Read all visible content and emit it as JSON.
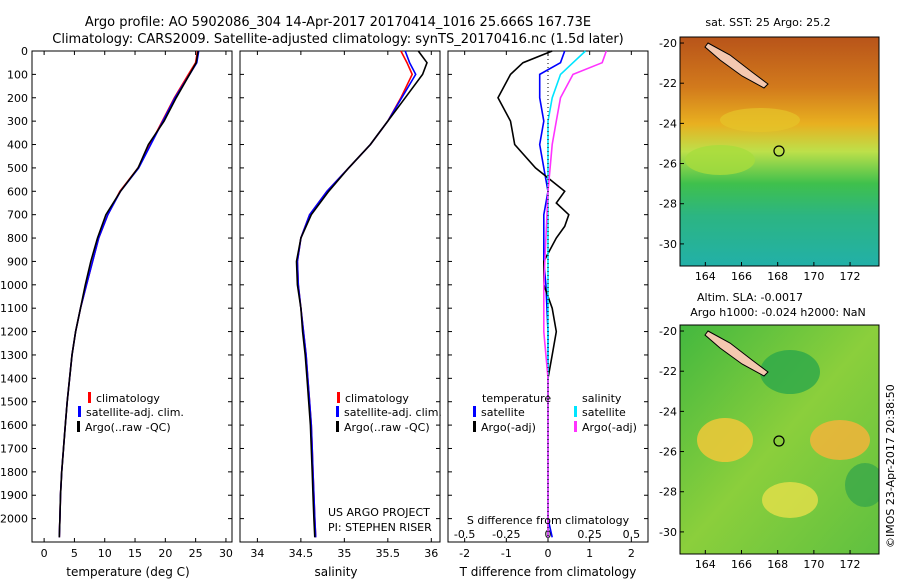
{
  "header": {
    "line1": "Argo profile: AO 5902086_304 14-Apr-2017 20170414_1016 25.666S 167.73E",
    "line2": "Climatology: CARS2009. Satellite-adjusted climatology: synTS_20170416.nc (1.5d later)"
  },
  "colors": {
    "climatology": "#ff0000",
    "satellite": "#0000ff",
    "argo": "#000000",
    "s_satellite": "#00e5ff",
    "s_argo": "#ff33ff"
  },
  "chart_data": [
    {
      "type": "line",
      "name": "temperature",
      "xlabel": "temperature (deg C)",
      "ylabel": "",
      "xlim": [
        -2,
        31
      ],
      "ylim": [
        2100,
        0
      ],
      "xticks": [
        0,
        5,
        10,
        15,
        20,
        25,
        30
      ],
      "yticks": [
        0,
        100,
        200,
        300,
        400,
        500,
        600,
        700,
        800,
        900,
        1000,
        1100,
        1200,
        1300,
        1400,
        1500,
        1600,
        1700,
        1800,
        1900,
        2000
      ],
      "legend": [
        "climatology",
        "satellite-adj. clim.",
        "Argo(..raw -QC)"
      ],
      "series": [
        {
          "name": "climatology",
          "color": "#ff0000",
          "points": [
            [
              25.3,
              0
            ],
            [
              25.0,
              50
            ],
            [
              23.8,
              100
            ],
            [
              21.5,
              200
            ],
            [
              19.5,
              300
            ],
            [
              17.5,
              400
            ],
            [
              15.5,
              500
            ],
            [
              12.5,
              600
            ],
            [
              10.5,
              700
            ],
            [
              9.0,
              800
            ],
            [
              8.0,
              900
            ],
            [
              7.0,
              1000
            ],
            [
              6.0,
              1100
            ],
            [
              5.2,
              1200
            ],
            [
              4.6,
              1300
            ],
            [
              4.2,
              1400
            ],
            [
              3.8,
              1500
            ],
            [
              3.5,
              1600
            ],
            [
              3.2,
              1700
            ],
            [
              2.9,
              1800
            ],
            [
              2.7,
              1900
            ],
            [
              2.6,
              2000
            ],
            [
              2.5,
              2080
            ]
          ]
        },
        {
          "name": "satellite-adj. clim.",
          "color": "#0000ff",
          "points": [
            [
              25.5,
              0
            ],
            [
              25.2,
              50
            ],
            [
              24.0,
              100
            ],
            [
              21.6,
              200
            ],
            [
              19.6,
              300
            ],
            [
              17.6,
              400
            ],
            [
              15.6,
              500
            ],
            [
              12.6,
              600
            ],
            [
              10.5,
              700
            ],
            [
              9.0,
              800
            ],
            [
              8.0,
              900
            ],
            [
              7.0,
              1000
            ],
            [
              6.0,
              1100
            ],
            [
              5.2,
              1200
            ],
            [
              4.6,
              1300
            ],
            [
              4.2,
              1400
            ],
            [
              3.8,
              1500
            ],
            [
              3.5,
              1600
            ],
            [
              3.2,
              1700
            ],
            [
              2.9,
              1800
            ],
            [
              2.7,
              1900
            ],
            [
              2.6,
              2000
            ],
            [
              2.5,
              2080
            ]
          ]
        },
        {
          "name": "Argo(..raw -QC)",
          "color": "#000000",
          "points": [
            [
              25.4,
              0
            ],
            [
              25.1,
              50
            ],
            [
              24.0,
              100
            ],
            [
              21.8,
              200
            ],
            [
              19.8,
              300
            ],
            [
              17.2,
              400
            ],
            [
              15.5,
              500
            ],
            [
              12.6,
              600
            ],
            [
              10.2,
              700
            ],
            [
              8.8,
              800
            ],
            [
              7.7,
              900
            ],
            [
              6.8,
              1000
            ],
            [
              6.0,
              1100
            ],
            [
              5.2,
              1200
            ],
            [
              4.6,
              1300
            ],
            [
              4.2,
              1400
            ],
            [
              3.8,
              1500
            ],
            [
              3.5,
              1600
            ],
            [
              3.2,
              1700
            ],
            [
              2.9,
              1800
            ],
            [
              2.7,
              1900
            ],
            [
              2.6,
              2000
            ],
            [
              2.5,
              2080
            ]
          ]
        }
      ]
    },
    {
      "type": "line",
      "name": "salinity",
      "xlabel": "salinity",
      "ylabel": "",
      "xlim": [
        33.8,
        36.1
      ],
      "ylim": [
        2100,
        0
      ],
      "xticks": [
        34,
        34.5,
        35,
        35.5,
        36
      ],
      "legend": [
        "climatology",
        "satellite-adj. clim.",
        "Argo(..raw -QC)"
      ],
      "annotation": [
        "US ARGO PROJECT",
        "PI: STEPHEN RISER"
      ],
      "series": [
        {
          "name": "climatology",
          "color": "#ff0000",
          "points": [
            [
              35.65,
              0
            ],
            [
              35.72,
              50
            ],
            [
              35.78,
              100
            ],
            [
              35.65,
              200
            ],
            [
              35.5,
              300
            ],
            [
              35.3,
              400
            ],
            [
              35.05,
              500
            ],
            [
              34.8,
              600
            ],
            [
              34.6,
              700
            ],
            [
              34.5,
              800
            ],
            [
              34.46,
              900
            ],
            [
              34.47,
              1000
            ],
            [
              34.5,
              1100
            ],
            [
              34.53,
              1200
            ],
            [
              34.56,
              1300
            ],
            [
              34.58,
              1400
            ],
            [
              34.6,
              1500
            ],
            [
              34.62,
              1600
            ],
            [
              34.63,
              1700
            ],
            [
              34.64,
              1800
            ],
            [
              34.65,
              1900
            ],
            [
              34.66,
              2000
            ],
            [
              34.67,
              2080
            ]
          ]
        },
        {
          "name": "satellite-adj. clim.",
          "color": "#0000ff",
          "points": [
            [
              35.7,
              0
            ],
            [
              35.75,
              50
            ],
            [
              35.82,
              100
            ],
            [
              35.66,
              200
            ],
            [
              35.5,
              300
            ],
            [
              35.3,
              400
            ],
            [
              35.05,
              500
            ],
            [
              34.8,
              600
            ],
            [
              34.6,
              700
            ],
            [
              34.5,
              800
            ],
            [
              34.46,
              900
            ],
            [
              34.47,
              1000
            ],
            [
              34.5,
              1100
            ],
            [
              34.53,
              1200
            ],
            [
              34.56,
              1300
            ],
            [
              34.58,
              1400
            ],
            [
              34.6,
              1500
            ],
            [
              34.62,
              1600
            ],
            [
              34.63,
              1700
            ],
            [
              34.64,
              1800
            ],
            [
              34.65,
              1900
            ],
            [
              34.66,
              2000
            ],
            [
              34.67,
              2080
            ]
          ]
        },
        {
          "name": "Argo(..raw -QC)",
          "color": "#000000",
          "points": [
            [
              35.85,
              0
            ],
            [
              35.95,
              50
            ],
            [
              35.9,
              100
            ],
            [
              35.7,
              200
            ],
            [
              35.5,
              300
            ],
            [
              35.3,
              400
            ],
            [
              35.05,
              500
            ],
            [
              34.82,
              600
            ],
            [
              34.62,
              700
            ],
            [
              34.5,
              800
            ],
            [
              34.45,
              900
            ],
            [
              34.46,
              1000
            ],
            [
              34.5,
              1100
            ],
            [
              34.52,
              1200
            ],
            [
              34.55,
              1300
            ],
            [
              34.57,
              1400
            ],
            [
              34.59,
              1500
            ],
            [
              34.61,
              1600
            ],
            [
              34.62,
              1700
            ],
            [
              34.63,
              1800
            ],
            [
              34.64,
              1900
            ],
            [
              34.65,
              2000
            ],
            [
              34.66,
              2080
            ]
          ]
        }
      ]
    },
    {
      "type": "line",
      "name": "differences",
      "xlabel": "T difference from climatology",
      "xlabel_top": "S difference from climatology",
      "xlim": [
        -2.4,
        2.4
      ],
      "ylim": [
        2100,
        0
      ],
      "xticks": [
        -2,
        -1,
        0,
        1,
        2
      ],
      "xticks_top": [
        -0.5,
        -0.25,
        0,
        0.25,
        0.5
      ],
      "legend_left_title": "temperature",
      "legend_right_title": "salinity",
      "legend_left": [
        "satellite",
        "Argo(-adj)"
      ],
      "legend_right": [
        "satellite",
        "Argo(-adj)"
      ],
      "series": [
        {
          "name": "T satellite",
          "color": "#0000ff",
          "points": [
            [
              0.4,
              0
            ],
            [
              0.3,
              50
            ],
            [
              -0.2,
              100
            ],
            [
              -0.2,
              200
            ],
            [
              -0.1,
              300
            ],
            [
              -0.2,
              400
            ],
            [
              -0.1,
              500
            ],
            [
              0.0,
              600
            ],
            [
              -0.1,
              700
            ],
            [
              -0.1,
              800
            ],
            [
              -0.1,
              900
            ],
            [
              -0.05,
              1000
            ],
            [
              0.0,
              1200
            ],
            [
              0.0,
              1500
            ],
            [
              0.0,
              2000
            ],
            [
              0.1,
              2080
            ]
          ]
        },
        {
          "name": "T Argo(-adj)",
          "color": "#000000",
          "points": [
            [
              0.1,
              0
            ],
            [
              -0.6,
              50
            ],
            [
              -0.9,
              100
            ],
            [
              -1.2,
              200
            ],
            [
              -0.9,
              300
            ],
            [
              -0.8,
              400
            ],
            [
              -0.3,
              500
            ],
            [
              0.4,
              600
            ],
            [
              0.2,
              650
            ],
            [
              0.5,
              700
            ],
            [
              0.4,
              750
            ],
            [
              0.2,
              800
            ],
            [
              -0.1,
              900
            ],
            [
              -0.1,
              1000
            ],
            [
              0.1,
              1100
            ],
            [
              0.2,
              1200
            ],
            [
              0.1,
              1300
            ],
            [
              0.0,
              1400
            ],
            [
              0.0,
              1600
            ],
            [
              0.0,
              1800
            ],
            [
              0.0,
              2000
            ],
            [
              0.0,
              2080
            ]
          ]
        },
        {
          "name": "S satellite",
          "color": "#00e5ff",
          "points": [
            [
              0.9,
              0
            ],
            [
              0.6,
              50
            ],
            [
              0.3,
              100
            ],
            [
              0.1,
              200
            ],
            [
              0.0,
              300
            ],
            [
              0.0,
              500
            ],
            [
              0.0,
              700
            ],
            [
              0.0,
              900
            ],
            [
              0.0,
              1200
            ],
            [
              0.0,
              1500
            ],
            [
              0.0,
              2000
            ],
            [
              0.0,
              2080
            ]
          ]
        },
        {
          "name": "S Argo(-adj)",
          "color": "#ff33ff",
          "points": [
            [
              1.4,
              0
            ],
            [
              1.3,
              50
            ],
            [
              0.6,
              100
            ],
            [
              0.3,
              200
            ],
            [
              0.2,
              300
            ],
            [
              0.1,
              400
            ],
            [
              0.05,
              500
            ],
            [
              0.0,
              600
            ],
            [
              -0.05,
              800
            ],
            [
              -0.1,
              1000
            ],
            [
              -0.1,
              1200
            ],
            [
              0.0,
              1400
            ],
            [
              0.0,
              1700
            ],
            [
              0.0,
              2000
            ],
            [
              0.0,
              2080
            ]
          ]
        }
      ]
    },
    {
      "type": "heatmap",
      "name": "sst_map",
      "title": "sat. SST: 25 Argo: 25.2",
      "xlim": [
        162.6,
        173.6
      ],
      "ylim": [
        -31.1,
        -19.7
      ],
      "xticks": [
        164,
        166,
        168,
        170,
        172
      ],
      "yticks": [
        -20,
        -22,
        -24,
        -26,
        -28,
        -30
      ],
      "argo_position": [
        167.73,
        -25.666
      ]
    },
    {
      "type": "heatmap",
      "name": "sla_map",
      "title": "Altim. SLA: -0.0017",
      "subtitle": "Argo h1000: -0.024 h2000: NaN",
      "xlim": [
        162.6,
        173.6
      ],
      "ylim": [
        -31.1,
        -19.7
      ],
      "xticks": [
        164,
        166,
        168,
        170,
        172
      ],
      "yticks": [
        -20,
        -22,
        -24,
        -26,
        -28,
        -30
      ],
      "argo_position": [
        167.73,
        -25.666
      ]
    }
  ],
  "watermark": "©IMOS 23-Apr-2017 20:38:50"
}
